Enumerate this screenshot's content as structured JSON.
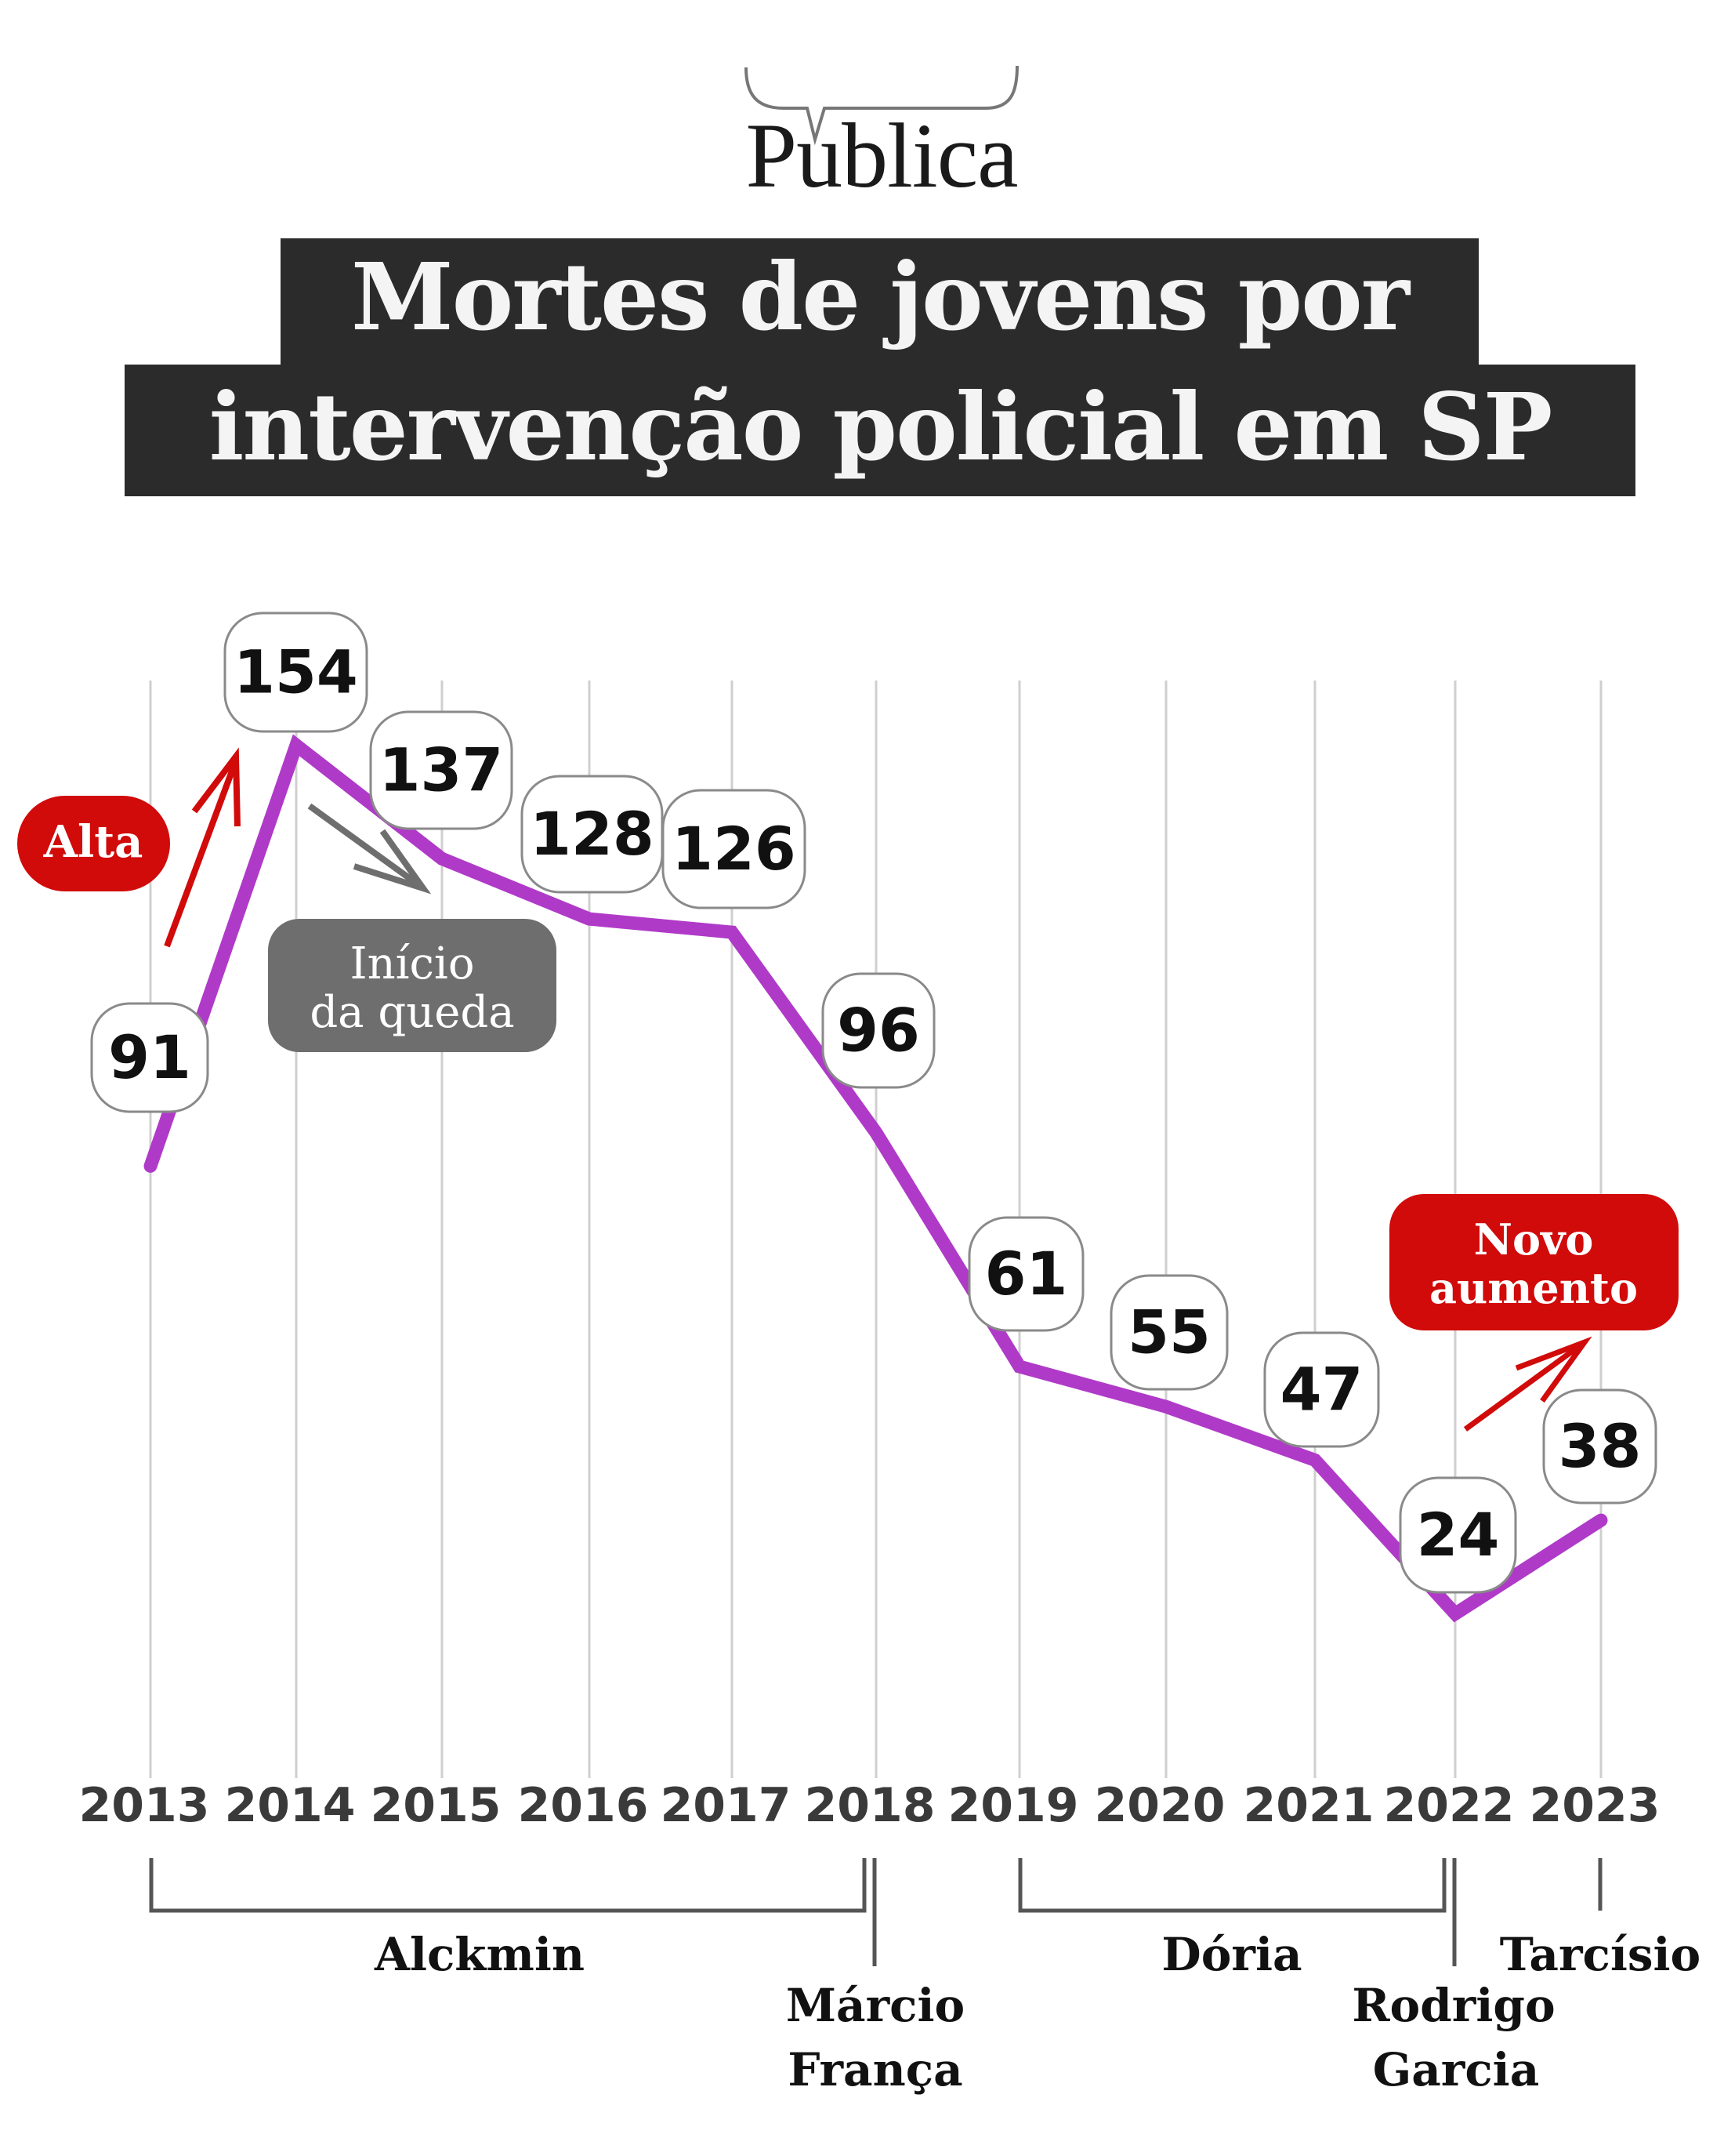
{
  "logo": {
    "name": "Publica",
    "icon": "speech-bubble-icon"
  },
  "title": {
    "line1": "Mortes de jovens por",
    "line2": "intervenção policial em SP"
  },
  "colors": {
    "line": "#b03ac8",
    "accent_red": "#d10a0a",
    "annotation_gray": "#6e6e6e",
    "title_bg": "#2b2b2b",
    "title_fg": "#f4f4f4",
    "gridline": "#cfcfcf",
    "axis_text": "#3a3a3a",
    "label_text": "#111111"
  },
  "annotations": {
    "alta": "Alta",
    "inicio_queda": [
      "Início",
      "da queda"
    ],
    "novo_aumento": [
      "Novo",
      "aumento"
    ]
  },
  "governors": [
    {
      "name": [
        "Alckmin"
      ],
      "from": "2013",
      "to": "2018"
    },
    {
      "name": [
        "Márcio",
        "França"
      ],
      "from": "2018",
      "to": "2018"
    },
    {
      "name": [
        "Dória"
      ],
      "from": "2019",
      "to": "2022"
    },
    {
      "name": [
        "Rodrigo",
        "Garcia"
      ],
      "from": "2022",
      "to": "2022"
    },
    {
      "name": [
        "Tarcísio"
      ],
      "from": "2023",
      "to": "2023"
    }
  ],
  "chart_data": {
    "type": "line",
    "title": "Mortes de jovens por intervenção policial em SP",
    "xlabel": "",
    "ylabel": "",
    "grid": "vertical",
    "categories": [
      "2013",
      "2014",
      "2015",
      "2016",
      "2017",
      "2018",
      "2019",
      "2020",
      "2021",
      "2022",
      "2023"
    ],
    "series": [
      {
        "name": "Mortes de jovens",
        "values": [
          91,
          154,
          137,
          128,
          126,
          96,
          61,
          55,
          47,
          24,
          38
        ]
      }
    ],
    "data_labels": [
      "91",
      "154",
      "137",
      "128",
      "126",
      "96",
      "61",
      "55",
      "47",
      "24",
      "38"
    ],
    "ylim": [
      0,
      165
    ]
  }
}
